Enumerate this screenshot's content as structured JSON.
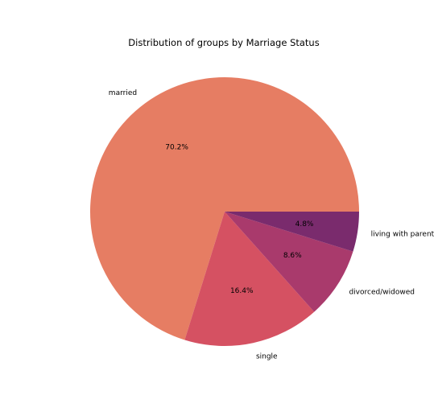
{
  "chart_data": {
    "type": "pie",
    "title": "Distribution of groups by Marriage Status",
    "slices": [
      {
        "label": "married",
        "value": 70.2,
        "pct_label": "70.2%",
        "color": "#e67d63"
      },
      {
        "label": "single",
        "value": 16.4,
        "pct_label": "16.4%",
        "color": "#d55162"
      },
      {
        "label": "divorced/widowed",
        "value": 8.6,
        "pct_label": "8.6%",
        "color": "#a93a6c"
      },
      {
        "label": "living with parent",
        "value": 4.8,
        "pct_label": "4.8%",
        "color": "#7a2b6d"
      }
    ],
    "start_angle_deg": 0,
    "direction": "counterclockwise",
    "legend": "none"
  }
}
